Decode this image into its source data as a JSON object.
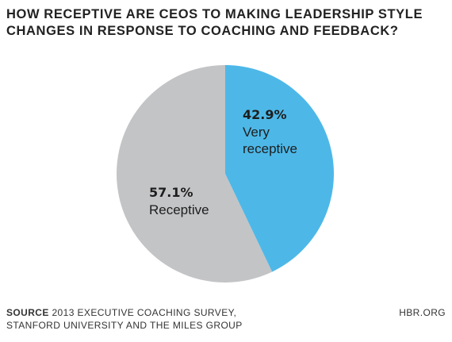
{
  "chart_data": {
    "type": "pie",
    "title": "HOW RECEPTIVE ARE CEOS TO MAKING LEADERSHIP STYLE CHANGES IN RESPONSE TO COACHING AND FEEDBACK?",
    "slices": [
      {
        "label": "Very receptive",
        "value": 42.9,
        "value_label": "42.9%",
        "color": "#4db8e8"
      },
      {
        "label": "Receptive",
        "value": 57.1,
        "value_label": "57.1%",
        "color": "#c3c4c6"
      }
    ],
    "start_angle": "12 o'clock, clockwise"
  },
  "footer": {
    "source_label": "SOURCE",
    "source_line1": "2013 EXECUTIVE COACHING SURVEY,",
    "source_line2": "STANFORD UNIVERSITY AND THE MILES GROUP",
    "brand": "HBR.ORG"
  }
}
